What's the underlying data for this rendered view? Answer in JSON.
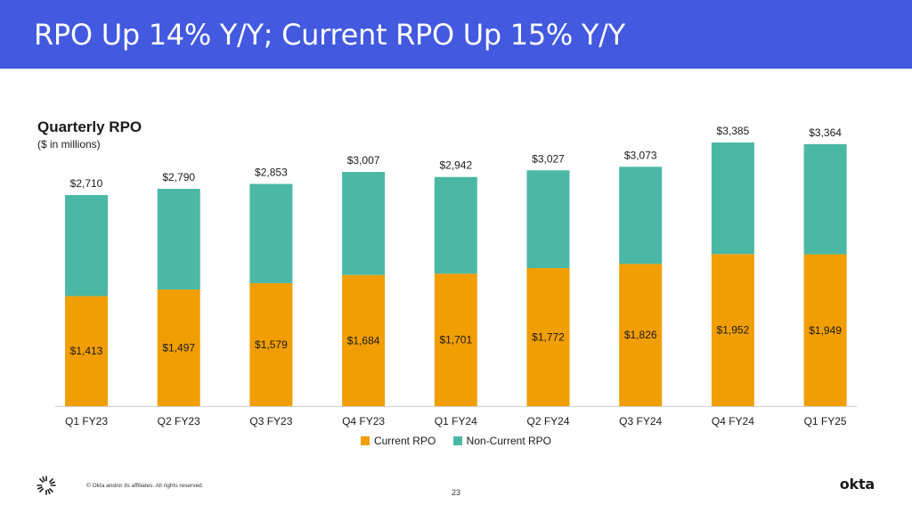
{
  "slide": {
    "title": "RPO Up 14% Y/Y; Current RPO Up 15% Y/Y",
    "copyright": "© Okta and/or its affiliates. All rights reserved.",
    "page_number": "23",
    "brand": "okta",
    "brand_icon": "okta-sunburst-icon"
  },
  "colors": {
    "title_bar": "#4259e0",
    "current": "#f19e02",
    "non_current": "#4ab8a4"
  },
  "chart_data": {
    "type": "bar",
    "stacked": true,
    "title": "Quarterly RPO",
    "subtitle": "($ in millions)",
    "categories": [
      "Q1 FY23",
      "Q2 FY23",
      "Q3 FY23",
      "Q4 FY23",
      "Q1 FY24",
      "Q2 FY24",
      "Q3 FY24",
      "Q4 FY24",
      "Q1 FY25"
    ],
    "series": [
      {
        "name": "Current RPO",
        "values": [
          1413,
          1497,
          1579,
          1684,
          1701,
          1772,
          1826,
          1952,
          1949
        ],
        "labels": [
          "$1,413",
          "$1,497",
          "$1,579",
          "$1,684",
          "$1,701",
          "$1,772",
          "$1,826",
          "$1,952",
          "$1,949"
        ]
      },
      {
        "name": "Non-Current RPO",
        "values": [
          1297,
          1293,
          1274,
          1323,
          1241,
          1255,
          1247,
          1433,
          1415
        ]
      }
    ],
    "totals": [
      2710,
      2790,
      2853,
      3007,
      2942,
      3027,
      3073,
      3385,
      3364
    ],
    "total_labels": [
      "$2,710",
      "$2,790",
      "$2,853",
      "$3,007",
      "$2,942",
      "$3,027",
      "$3,073",
      "$3,385",
      "$3,364"
    ],
    "ylim": [
      0,
      3385
    ],
    "legend_position": "bottom-center",
    "grid": false
  }
}
